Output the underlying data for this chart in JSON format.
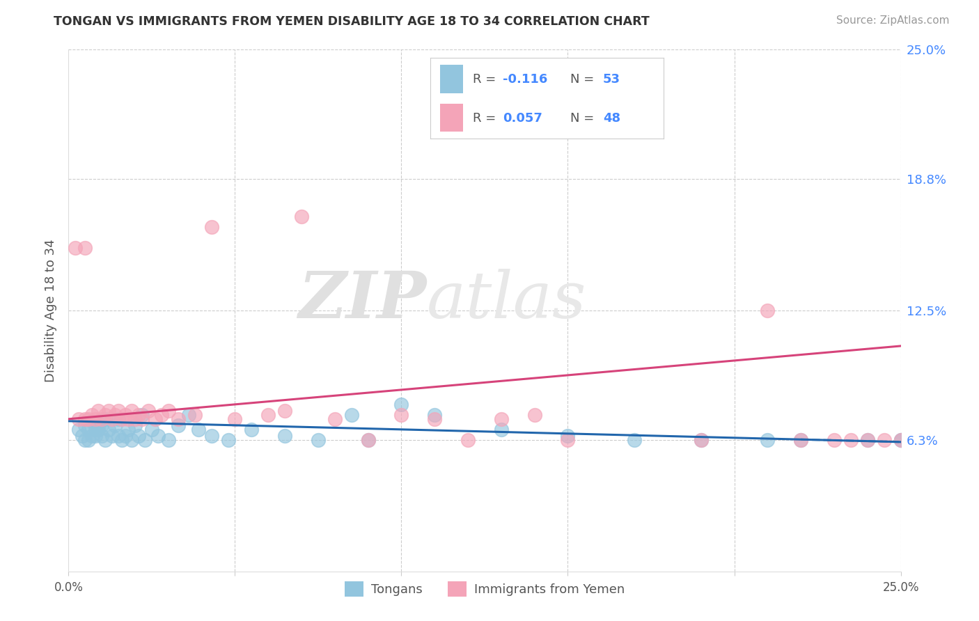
{
  "title": "TONGAN VS IMMIGRANTS FROM YEMEN DISABILITY AGE 18 TO 34 CORRELATION CHART",
  "source": "Source: ZipAtlas.com",
  "ylabel": "Disability Age 18 to 34",
  "xlim": [
    0.0,
    0.25
  ],
  "ylim": [
    0.0,
    0.25
  ],
  "color_blue": "#92c5de",
  "color_pink": "#f4a4b8",
  "color_blue_line": "#2166ac",
  "color_pink_line": "#d6437a",
  "legend_label1": "Tongans",
  "legend_label2": "Immigrants from Yemen",
  "watermark_zip": "ZIP",
  "watermark_atlas": "atlas",
  "blue_x": [
    0.003,
    0.004,
    0.005,
    0.005,
    0.006,
    0.006,
    0.007,
    0.007,
    0.008,
    0.008,
    0.009,
    0.009,
    0.01,
    0.01,
    0.011,
    0.011,
    0.012,
    0.013,
    0.014,
    0.015,
    0.015,
    0.016,
    0.017,
    0.018,
    0.019,
    0.02,
    0.021,
    0.022,
    0.023,
    0.025,
    0.027,
    0.03,
    0.033,
    0.036,
    0.039,
    0.043,
    0.048,
    0.055,
    0.065,
    0.075,
    0.085,
    0.09,
    0.1,
    0.11,
    0.13,
    0.15,
    0.17,
    0.19,
    0.21,
    0.22,
    0.24,
    0.25,
    0.25
  ],
  "blue_y": [
    0.068,
    0.065,
    0.063,
    0.07,
    0.063,
    0.068,
    0.065,
    0.072,
    0.068,
    0.065,
    0.07,
    0.068,
    0.065,
    0.07,
    0.073,
    0.063,
    0.068,
    0.065,
    0.07,
    0.073,
    0.065,
    0.063,
    0.065,
    0.068,
    0.063,
    0.07,
    0.065,
    0.075,
    0.063,
    0.068,
    0.065,
    0.063,
    0.07,
    0.075,
    0.068,
    0.065,
    0.063,
    0.068,
    0.065,
    0.063,
    0.075,
    0.063,
    0.08,
    0.075,
    0.068,
    0.065,
    0.063,
    0.063,
    0.063,
    0.063,
    0.063,
    0.063,
    0.063
  ],
  "pink_x": [
    0.002,
    0.003,
    0.005,
    0.005,
    0.006,
    0.007,
    0.008,
    0.009,
    0.01,
    0.011,
    0.012,
    0.013,
    0.014,
    0.015,
    0.016,
    0.017,
    0.018,
    0.019,
    0.02,
    0.021,
    0.022,
    0.024,
    0.026,
    0.028,
    0.03,
    0.033,
    0.038,
    0.043,
    0.05,
    0.06,
    0.065,
    0.07,
    0.08,
    0.09,
    0.1,
    0.11,
    0.12,
    0.13,
    0.14,
    0.15,
    0.19,
    0.21,
    0.22,
    0.23,
    0.235,
    0.24,
    0.245,
    0.25
  ],
  "pink_y": [
    0.155,
    0.073,
    0.073,
    0.155,
    0.073,
    0.075,
    0.073,
    0.077,
    0.073,
    0.075,
    0.077,
    0.073,
    0.075,
    0.077,
    0.073,
    0.075,
    0.073,
    0.077,
    0.073,
    0.075,
    0.073,
    0.077,
    0.073,
    0.075,
    0.077,
    0.073,
    0.075,
    0.165,
    0.073,
    0.075,
    0.077,
    0.17,
    0.073,
    0.063,
    0.075,
    0.073,
    0.063,
    0.073,
    0.075,
    0.063,
    0.063,
    0.125,
    0.063,
    0.063,
    0.063,
    0.063,
    0.063,
    0.063
  ],
  "blue_line_x": [
    0.0,
    0.25
  ],
  "blue_line_y": [
    0.072,
    0.062
  ],
  "pink_line_x": [
    0.0,
    0.25
  ],
  "pink_line_y": [
    0.073,
    0.108
  ],
  "right_yticks": [
    0.063,
    0.125,
    0.188,
    0.25
  ],
  "right_ytick_labels": [
    "6.3%",
    "12.5%",
    "18.8%",
    "25.0%"
  ]
}
